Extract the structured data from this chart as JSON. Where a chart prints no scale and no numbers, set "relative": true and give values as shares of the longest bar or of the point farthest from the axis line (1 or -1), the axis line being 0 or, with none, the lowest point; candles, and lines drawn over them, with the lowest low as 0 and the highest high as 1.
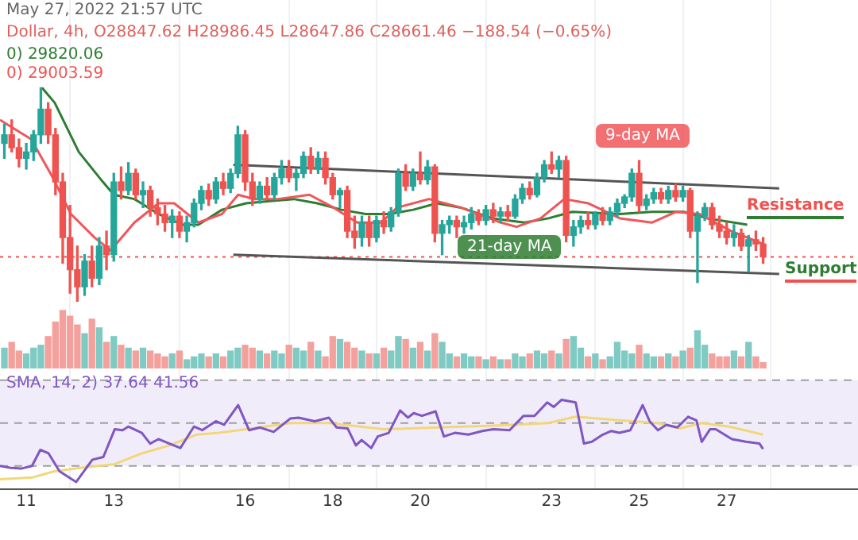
{
  "chart_data": [
    {
      "type": "candlestick",
      "relative": true,
      "x": [
        10.5,
        10.667,
        10.833,
        11,
        11.167,
        11.333,
        11.5,
        11.667,
        11.833,
        12,
        12.167,
        12.333,
        12.5,
        12.667,
        12.833,
        13,
        13.167,
        13.333,
        13.5,
        13.667,
        13.833,
        14,
        14.167,
        14.333,
        14.5,
        14.667,
        14.833,
        15,
        15.167,
        15.333,
        15.5,
        15.667,
        15.833,
        16,
        16.167,
        16.333,
        16.5,
        16.667,
        16.833,
        17,
        17.167,
        17.333,
        17.5,
        17.667,
        17.833,
        18,
        18.167,
        18.333,
        18.5,
        18.667,
        18.833,
        19,
        19.167,
        19.333,
        19.5,
        19.667,
        19.833,
        20,
        20.167,
        20.333,
        20.5,
        20.667,
        20.833,
        21,
        21.167,
        21.333,
        21.5,
        21.667,
        21.833,
        22,
        22.167,
        22.333,
        22.5,
        22.667,
        22.833,
        23,
        23.167,
        23.333,
        23.5,
        23.667,
        23.833,
        24,
        24.167,
        24.333,
        24.5,
        24.667,
        24.833,
        25,
        25.167,
        25.333,
        25.5,
        25.667,
        25.833,
        26,
        26.167,
        26.333,
        26.5,
        26.667,
        26.833,
        27,
        27.167,
        27.333,
        27.5,
        27.667,
        27.833
      ],
      "ohlc": [
        [
          0.74,
          0.83,
          0.67,
          0.78
        ],
        [
          0.78,
          0.85,
          0.7,
          0.72
        ],
        [
          0.72,
          0.76,
          0.63,
          0.67
        ],
        [
          0.67,
          0.74,
          0.62,
          0.7
        ],
        [
          0.7,
          0.8,
          0.66,
          0.78
        ],
        [
          0.78,
          1.0,
          0.74,
          0.9
        ],
        [
          0.9,
          0.93,
          0.74,
          0.78
        ],
        [
          0.78,
          0.81,
          0.5,
          0.56
        ],
        [
          0.56,
          0.6,
          0.18,
          0.3
        ],
        [
          0.3,
          0.45,
          0.04,
          0.15
        ],
        [
          0.15,
          0.26,
          0.0,
          0.07
        ],
        [
          0.07,
          0.22,
          0.03,
          0.19
        ],
        [
          0.19,
          0.26,
          0.07,
          0.11
        ],
        [
          0.11,
          0.3,
          0.08,
          0.26
        ],
        [
          0.26,
          0.33,
          0.15,
          0.22
        ],
        [
          0.22,
          0.6,
          0.19,
          0.56
        ],
        [
          0.56,
          0.63,
          0.48,
          0.52
        ],
        [
          0.52,
          0.65,
          0.5,
          0.6
        ],
        [
          0.6,
          0.62,
          0.48,
          0.5
        ],
        [
          0.5,
          0.56,
          0.44,
          0.52
        ],
        [
          0.52,
          0.54,
          0.4,
          0.44
        ],
        [
          0.44,
          0.48,
          0.36,
          0.41
        ],
        [
          0.41,
          0.45,
          0.33,
          0.37
        ],
        [
          0.37,
          0.43,
          0.3,
          0.4
        ],
        [
          0.4,
          0.42,
          0.3,
          0.33
        ],
        [
          0.33,
          0.4,
          0.28,
          0.37
        ],
        [
          0.37,
          0.48,
          0.35,
          0.46
        ],
        [
          0.46,
          0.54,
          0.43,
          0.52
        ],
        [
          0.52,
          0.55,
          0.45,
          0.48
        ],
        [
          0.48,
          0.58,
          0.46,
          0.56
        ],
        [
          0.56,
          0.6,
          0.5,
          0.53
        ],
        [
          0.53,
          0.62,
          0.51,
          0.6
        ],
        [
          0.6,
          0.82,
          0.58,
          0.78
        ],
        [
          0.78,
          0.8,
          0.52,
          0.56
        ],
        [
          0.56,
          0.6,
          0.45,
          0.48
        ],
        [
          0.48,
          0.56,
          0.46,
          0.54
        ],
        [
          0.54,
          0.58,
          0.48,
          0.5
        ],
        [
          0.5,
          0.6,
          0.48,
          0.58
        ],
        [
          0.58,
          0.66,
          0.55,
          0.62
        ],
        [
          0.62,
          0.66,
          0.56,
          0.58
        ],
        [
          0.58,
          0.62,
          0.52,
          0.6
        ],
        [
          0.6,
          0.7,
          0.58,
          0.68
        ],
        [
          0.68,
          0.72,
          0.6,
          0.62
        ],
        [
          0.62,
          0.7,
          0.6,
          0.67
        ],
        [
          0.67,
          0.7,
          0.55,
          0.58
        ],
        [
          0.58,
          0.6,
          0.48,
          0.5
        ],
        [
          0.5,
          0.53,
          0.44,
          0.52
        ],
        [
          0.52,
          0.54,
          0.3,
          0.33
        ],
        [
          0.33,
          0.4,
          0.25,
          0.3
        ],
        [
          0.3,
          0.4,
          0.26,
          0.37
        ],
        [
          0.37,
          0.4,
          0.26,
          0.3
        ],
        [
          0.3,
          0.4,
          0.28,
          0.38
        ],
        [
          0.38,
          0.42,
          0.32,
          0.35
        ],
        [
          0.35,
          0.44,
          0.33,
          0.42
        ],
        [
          0.42,
          0.62,
          0.4,
          0.6
        ],
        [
          0.6,
          0.64,
          0.52,
          0.54
        ],
        [
          0.54,
          0.62,
          0.52,
          0.6
        ],
        [
          0.6,
          0.7,
          0.55,
          0.57
        ],
        [
          0.57,
          0.66,
          0.55,
          0.63
        ],
        [
          0.63,
          0.64,
          0.28,
          0.32
        ],
        [
          0.32,
          0.38,
          0.22,
          0.36
        ],
        [
          0.36,
          0.4,
          0.32,
          0.38
        ],
        [
          0.38,
          0.4,
          0.3,
          0.35
        ],
        [
          0.35,
          0.4,
          0.32,
          0.37
        ],
        [
          0.37,
          0.44,
          0.34,
          0.41
        ],
        [
          0.41,
          0.43,
          0.36,
          0.38
        ],
        [
          0.38,
          0.45,
          0.36,
          0.43
        ],
        [
          0.43,
          0.46,
          0.37,
          0.4
        ],
        [
          0.4,
          0.44,
          0.37,
          0.42
        ],
        [
          0.42,
          0.45,
          0.38,
          0.4
        ],
        [
          0.4,
          0.5,
          0.39,
          0.48
        ],
        [
          0.48,
          0.55,
          0.46,
          0.53
        ],
        [
          0.53,
          0.56,
          0.48,
          0.5
        ],
        [
          0.5,
          0.6,
          0.49,
          0.58
        ],
        [
          0.58,
          0.66,
          0.56,
          0.64
        ],
        [
          0.64,
          0.7,
          0.6,
          0.62
        ],
        [
          0.62,
          0.68,
          0.58,
          0.66
        ],
        [
          0.66,
          0.68,
          0.28,
          0.31
        ],
        [
          0.31,
          0.38,
          0.26,
          0.35
        ],
        [
          0.35,
          0.4,
          0.32,
          0.38
        ],
        [
          0.38,
          0.42,
          0.34,
          0.36
        ],
        [
          0.36,
          0.42,
          0.34,
          0.41
        ],
        [
          0.41,
          0.44,
          0.36,
          0.38
        ],
        [
          0.38,
          0.44,
          0.36,
          0.42
        ],
        [
          0.42,
          0.48,
          0.4,
          0.46
        ],
        [
          0.46,
          0.5,
          0.44,
          0.49
        ],
        [
          0.49,
          0.62,
          0.47,
          0.6
        ],
        [
          0.6,
          0.66,
          0.42,
          0.45
        ],
        [
          0.45,
          0.5,
          0.43,
          0.48
        ],
        [
          0.48,
          0.53,
          0.46,
          0.51
        ],
        [
          0.51,
          0.53,
          0.46,
          0.48
        ],
        [
          0.48,
          0.54,
          0.46,
          0.52
        ],
        [
          0.52,
          0.55,
          0.47,
          0.49
        ],
        [
          0.49,
          0.54,
          0.47,
          0.52
        ],
        [
          0.52,
          0.53,
          0.3,
          0.33
        ],
        [
          0.33,
          0.42,
          0.09,
          0.4
        ],
        [
          0.4,
          0.46,
          0.38,
          0.44
        ],
        [
          0.44,
          0.46,
          0.34,
          0.36
        ],
        [
          0.36,
          0.4,
          0.3,
          0.33
        ],
        [
          0.33,
          0.37,
          0.27,
          0.3
        ],
        [
          0.3,
          0.36,
          0.26,
          0.32
        ],
        [
          0.32,
          0.34,
          0.24,
          0.26
        ],
        [
          0.26,
          0.31,
          0.14,
          0.29
        ],
        [
          0.29,
          0.33,
          0.24,
          0.27
        ],
        [
          0.27,
          0.3,
          0.18,
          0.21
        ]
      ],
      "colors": [
        "#26a69a",
        "#ef5350",
        "#ef5350",
        "#26a69a",
        "#26a69a",
        "#26a69a",
        "#ef5350",
        "#ef5350",
        "#ef5350",
        "#ef5350",
        "#ef5350",
        "#26a69a",
        "#ef5350",
        "#26a69a",
        "#ef5350",
        "#26a69a",
        "#ef5350",
        "#26a69a",
        "#ef5350",
        "#26a69a",
        "#ef5350",
        "#ef5350",
        "#ef5350",
        "#26a69a",
        "#ef5350",
        "#26a69a",
        "#26a69a",
        "#26a69a",
        "#ef5350",
        "#26a69a",
        "#ef5350",
        "#26a69a",
        "#26a69a",
        "#ef5350",
        "#ef5350",
        "#26a69a",
        "#ef5350",
        "#26a69a",
        "#26a69a",
        "#ef5350",
        "#26a69a",
        "#26a69a",
        "#ef5350",
        "#26a69a",
        "#ef5350",
        "#ef5350",
        "#26a69a",
        "#ef5350",
        "#ef5350",
        "#26a69a",
        "#ef5350",
        "#26a69a",
        "#ef5350",
        "#26a69a",
        "#26a69a",
        "#ef5350",
        "#26a69a",
        "#ef5350",
        "#26a69a",
        "#ef5350",
        "#26a69a",
        "#26a69a",
        "#ef5350",
        "#26a69a",
        "#26a69a",
        "#ef5350",
        "#26a69a",
        "#ef5350",
        "#26a69a",
        "#ef5350",
        "#26a69a",
        "#26a69a",
        "#ef5350",
        "#26a69a",
        "#26a69a",
        "#ef5350",
        "#26a69a",
        "#ef5350",
        "#26a69a",
        "#26a69a",
        "#ef5350",
        "#26a69a",
        "#ef5350",
        "#26a69a",
        "#26a69a",
        "#26a69a",
        "#26a69a",
        "#ef5350",
        "#26a69a",
        "#26a69a",
        "#ef5350",
        "#26a69a",
        "#ef5350",
        "#26a69a",
        "#ef5350",
        "#26a69a",
        "#26a69a",
        "#ef5350",
        "#ef5350",
        "#ef5350",
        "#26a69a",
        "#ef5350",
        "#26a69a",
        "#ef5350",
        "#ef5350"
      ],
      "series": [
        {
          "type": "line",
          "name": "9-day MA",
          "color": "#f0565a",
          "x": [
            10.4,
            11.11,
            11.58,
            12.02,
            12.56,
            12.93,
            13.47,
            14.02,
            14.38,
            14.93,
            15.47,
            15.84,
            16.2,
            16.75,
            17.47,
            18.02,
            18.56,
            19.11,
            19.47,
            20.2,
            20.93,
            21.84,
            22.2,
            22.75,
            23.29,
            23.84,
            24.56,
            25.29,
            25.84,
            26.38,
            27.11,
            27.83
          ],
          "values": [
            0.85,
            0.76,
            0.59,
            0.41,
            0.3,
            0.24,
            0.37,
            0.46,
            0.46,
            0.37,
            0.41,
            0.5,
            0.48,
            0.48,
            0.5,
            0.44,
            0.37,
            0.37,
            0.44,
            0.48,
            0.44,
            0.37,
            0.35,
            0.39,
            0.48,
            0.46,
            0.39,
            0.37,
            0.42,
            0.41,
            0.33,
            0.27
          ]
        },
        {
          "type": "line",
          "name": "21-day MA",
          "color": "#2e7d32",
          "x": [
            11.36,
            11.65,
            12.2,
            12.75,
            13.0,
            13.47,
            14.02,
            14.56,
            14.93,
            15.47,
            16.02,
            16.56,
            17.11,
            17.65,
            18.2,
            18.75,
            19.29,
            19.84,
            20.38,
            20.93,
            21.65,
            22.38,
            22.93,
            23.47,
            24.56,
            25.29,
            26.02,
            26.56,
            27.47
          ],
          "values": [
            1.0,
            0.93,
            0.7,
            0.56,
            0.5,
            0.48,
            0.41,
            0.36,
            0.36,
            0.43,
            0.46,
            0.47,
            0.48,
            0.46,
            0.43,
            0.41,
            0.41,
            0.43,
            0.46,
            0.44,
            0.39,
            0.37,
            0.39,
            0.42,
            0.41,
            0.42,
            0.42,
            0.39,
            0.36
          ]
        },
        {
          "type": "line",
          "color": "#555555",
          "x": [
            15.73,
            28.2
          ],
          "values": [
            0.64,
            0.53
          ]
        },
        {
          "type": "line",
          "color": "#555555",
          "x": [
            15.73,
            28.2
          ],
          "values": [
            0.22,
            0.13
          ]
        }
      ],
      "ref_lines": [
        {
          "axis": "y",
          "value": 0.21,
          "color": "#ef5350",
          "line_style": "dotted"
        }
      ],
      "annotations": [
        "May 27, 2022 21:57 UTC",
        "Dollar, 4h, O28847.62 H28986.45 L28647.86 C28661.46 −188.54 (−0.65%)",
        "0) 29820.06",
        "0) 29003.59",
        "Resistance",
        "Support"
      ],
      "xlim": [
        10.4,
        30.0
      ],
      "xticks": [
        11,
        13,
        16,
        18,
        20,
        23,
        25,
        27
      ],
      "grid": "x",
      "tick_labels": false
    },
    {
      "type": "bar",
      "relative": true,
      "x": [
        10.5,
        10.667,
        10.833,
        11,
        11.167,
        11.333,
        11.5,
        11.667,
        11.833,
        12,
        12.167,
        12.333,
        12.5,
        12.667,
        12.833,
        13,
        13.167,
        13.333,
        13.5,
        13.667,
        13.833,
        14,
        14.167,
        14.333,
        14.5,
        14.667,
        14.833,
        15,
        15.167,
        15.333,
        15.5,
        15.667,
        15.833,
        16,
        16.167,
        16.333,
        16.5,
        16.667,
        16.833,
        17,
        17.167,
        17.333,
        17.5,
        17.667,
        17.833,
        18,
        18.167,
        18.333,
        18.5,
        18.667,
        18.833,
        19,
        19.167,
        19.333,
        19.5,
        19.667,
        19.833,
        20,
        20.167,
        20.333,
        20.5,
        20.667,
        20.833,
        21,
        21.167,
        21.333,
        21.5,
        21.667,
        21.833,
        22,
        22.167,
        22.333,
        22.5,
        22.667,
        22.833,
        23,
        23.167,
        23.333,
        23.5,
        23.667,
        23.833,
        24,
        24.167,
        24.333,
        24.5,
        24.667,
        24.833,
        25,
        25.167,
        25.333,
        25.5,
        25.667,
        25.833,
        26,
        26.167,
        26.333,
        26.5,
        26.667,
        26.833,
        27,
        27.167,
        27.333,
        27.5,
        27.667,
        27.833
      ],
      "values": [
        0.35,
        0.45,
        0.3,
        0.25,
        0.35,
        0.4,
        0.55,
        0.8,
        1.0,
        0.9,
        0.75,
        0.6,
        0.85,
        0.7,
        0.45,
        0.55,
        0.4,
        0.35,
        0.3,
        0.35,
        0.3,
        0.25,
        0.2,
        0.25,
        0.3,
        0.15,
        0.2,
        0.25,
        0.2,
        0.25,
        0.2,
        0.3,
        0.35,
        0.4,
        0.35,
        0.3,
        0.25,
        0.3,
        0.25,
        0.4,
        0.35,
        0.3,
        0.45,
        0.3,
        0.2,
        0.55,
        0.5,
        0.45,
        0.35,
        0.3,
        0.25,
        0.25,
        0.35,
        0.3,
        0.55,
        0.5,
        0.35,
        0.45,
        0.3,
        0.6,
        0.45,
        0.25,
        0.2,
        0.25,
        0.2,
        0.2,
        0.15,
        0.2,
        0.15,
        0.15,
        0.25,
        0.2,
        0.25,
        0.3,
        0.25,
        0.3,
        0.25,
        0.5,
        0.55,
        0.35,
        0.2,
        0.25,
        0.15,
        0.2,
        0.45,
        0.3,
        0.25,
        0.4,
        0.25,
        0.2,
        0.2,
        0.25,
        0.2,
        0.3,
        0.35,
        0.65,
        0.4,
        0.25,
        0.2,
        0.2,
        0.3,
        0.2,
        0.45,
        0.2,
        0.1
      ],
      "colors": [
        "#7fcac3",
        "#f4a09d",
        "#f4a09d",
        "#7fcac3",
        "#7fcac3",
        "#7fcac3",
        "#f4a09d",
        "#f4a09d",
        "#f4a09d",
        "#f4a09d",
        "#f4a09d",
        "#7fcac3",
        "#f4a09d",
        "#7fcac3",
        "#f4a09d",
        "#7fcac3",
        "#f4a09d",
        "#7fcac3",
        "#f4a09d",
        "#7fcac3",
        "#f4a09d",
        "#f4a09d",
        "#f4a09d",
        "#7fcac3",
        "#f4a09d",
        "#7fcac3",
        "#7fcac3",
        "#7fcac3",
        "#f4a09d",
        "#7fcac3",
        "#f4a09d",
        "#7fcac3",
        "#7fcac3",
        "#f4a09d",
        "#f4a09d",
        "#7fcac3",
        "#f4a09d",
        "#7fcac3",
        "#7fcac3",
        "#f4a09d",
        "#7fcac3",
        "#7fcac3",
        "#f4a09d",
        "#7fcac3",
        "#f4a09d",
        "#f4a09d",
        "#7fcac3",
        "#f4a09d",
        "#f4a09d",
        "#7fcac3",
        "#f4a09d",
        "#7fcac3",
        "#f4a09d",
        "#7fcac3",
        "#7fcac3",
        "#f4a09d",
        "#7fcac3",
        "#f4a09d",
        "#7fcac3",
        "#f4a09d",
        "#7fcac3",
        "#7fcac3",
        "#f4a09d",
        "#7fcac3",
        "#7fcac3",
        "#f4a09d",
        "#7fcac3",
        "#f4a09d",
        "#7fcac3",
        "#f4a09d",
        "#7fcac3",
        "#7fcac3",
        "#f4a09d",
        "#7fcac3",
        "#7fcac3",
        "#f4a09d",
        "#7fcac3",
        "#f4a09d",
        "#7fcac3",
        "#7fcac3",
        "#f4a09d",
        "#7fcac3",
        "#f4a09d",
        "#7fcac3",
        "#7fcac3",
        "#7fcac3",
        "#7fcac3",
        "#f4a09d",
        "#7fcac3",
        "#7fcac3",
        "#f4a09d",
        "#7fcac3",
        "#f4a09d",
        "#7fcac3",
        "#f4a09d",
        "#7fcac3",
        "#7fcac3",
        "#f4a09d",
        "#f4a09d",
        "#f4a09d",
        "#7fcac3",
        "#f4a09d",
        "#7fcac3",
        "#f4a09d",
        "#f4a09d"
      ],
      "xlim": [
        10.4,
        30.0
      ],
      "xticks": [
        11,
        13,
        16,
        18,
        20,
        23,
        25,
        27
      ],
      "grid": "x",
      "tick_labels": false
    },
    {
      "type": "line",
      "relative": true,
      "series": [
        {
          "color": "#7e57c2",
          "x": [
            10.4,
            10.63,
            10.88,
            11.13,
            11.32,
            11.51,
            11.76,
            12.14,
            12.51,
            12.76,
            13.02,
            13.2,
            13.33,
            13.64,
            13.83,
            14.02,
            14.27,
            14.52,
            14.83,
            15.02,
            15.33,
            15.52,
            15.84,
            16.09,
            16.34,
            16.65,
            17.03,
            17.22,
            17.59,
            17.91,
            18.09,
            18.34,
            18.53,
            18.66,
            18.88,
            19.03,
            19.28,
            19.54,
            19.72,
            19.85,
            20.04,
            20.35,
            20.54,
            20.79,
            21.1,
            21.42,
            21.67,
            22.04,
            22.36,
            22.61,
            22.9,
            23.05,
            23.23,
            23.55,
            23.74,
            23.92,
            24.17,
            24.36,
            24.55,
            24.8,
            25.08,
            25.24,
            25.43,
            25.62,
            25.87,
            26.12,
            26.31,
            26.43,
            26.62,
            26.75,
            27.12,
            27.44,
            27.75,
            27.83
          ],
          "values": [
            0.26,
            0.24,
            0.23,
            0.26,
            0.44,
            0.4,
            0.2,
            0.08,
            0.33,
            0.36,
            0.67,
            0.66,
            0.7,
            0.63,
            0.51,
            0.56,
            0.51,
            0.46,
            0.7,
            0.66,
            0.76,
            0.72,
            0.94,
            0.66,
            0.69,
            0.64,
            0.79,
            0.8,
            0.76,
            0.8,
            0.69,
            0.68,
            0.49,
            0.55,
            0.46,
            0.59,
            0.63,
            0.88,
            0.8,
            0.85,
            0.82,
            0.87,
            0.59,
            0.63,
            0.61,
            0.65,
            0.67,
            0.66,
            0.82,
            0.82,
            0.97,
            0.92,
            1.0,
            0.97,
            0.51,
            0.53,
            0.61,
            0.65,
            0.63,
            0.66,
            0.94,
            0.76,
            0.66,
            0.72,
            0.69,
            0.81,
            0.77,
            0.53,
            0.67,
            0.67,
            0.56,
            0.53,
            0.51,
            0.45
          ]
        },
        {
          "color": "#f2d779",
          "x": [
            10.4,
            11.13,
            11.64,
            12.26,
            13.02,
            13.64,
            14.27,
            14.89,
            15.4,
            16.03,
            17.03,
            17.91,
            19.16,
            20.41,
            21.67,
            22.92,
            23.55,
            24.55,
            25.43,
            25.93,
            26.43,
            27.06,
            27.83
          ],
          "values": [
            0.11,
            0.13,
            0.2,
            0.24,
            0.28,
            0.4,
            0.49,
            0.61,
            0.63,
            0.67,
            0.74,
            0.74,
            0.67,
            0.69,
            0.71,
            0.74,
            0.81,
            0.77,
            0.74,
            0.68,
            0.74,
            0.7,
            0.61
          ]
        }
      ],
      "bands": [
        {
          "axis": "y",
          "from": 0.26,
          "to": 1.22,
          "color": "#f1ecfa"
        }
      ],
      "ref_lines": [
        {
          "axis": "y",
          "value": 1.22,
          "color": "#9e9e9e",
          "line_style": "dashed"
        },
        {
          "axis": "y",
          "value": 0.74,
          "color": "#9e9e9e",
          "line_style": "dashed"
        },
        {
          "axis": "y",
          "value": 0.26,
          "color": "#9e9e9e",
          "line_style": "dashed"
        }
      ],
      "annotations": [
        "SMA, 14, 2) 37.64 41.56"
      ],
      "xlim": [
        10.4,
        30.0
      ],
      "xticks": [
        11,
        13,
        16,
        18,
        20,
        23,
        25,
        27
      ],
      "grid": "x",
      "tick_labels": "x"
    }
  ]
}
